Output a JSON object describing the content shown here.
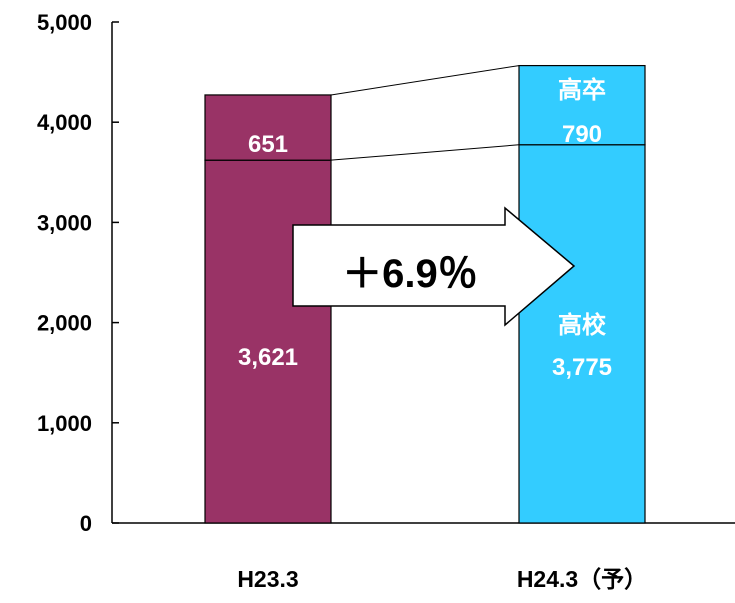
{
  "chart_data": {
    "type": "bar",
    "stacked": true,
    "categories": [
      "H23.3",
      "H24.3（予）"
    ],
    "series": [
      {
        "name": "高校",
        "values": [
          3621,
          3775
        ],
        "labels": [
          "3,621",
          "3,775"
        ]
      },
      {
        "name": "高卒",
        "values": [
          651,
          790
        ],
        "labels": [
          "651",
          "790"
        ]
      }
    ],
    "series_labels_shown": {
      "高校": "高校",
      "高卒": "高卒"
    },
    "ylim": [
      0,
      5000
    ],
    "yticks": [
      0,
      1000,
      2000,
      3000,
      4000,
      5000
    ],
    "ytick_labels": [
      "0",
      "1,000",
      "2,000",
      "3,000",
      "4,000",
      "5,000"
    ],
    "title": "",
    "xlabel": "",
    "ylabel": "",
    "grid": false,
    "annotation": {
      "text": "＋6.9％",
      "shape": "right-arrow"
    },
    "colors": {
      "cat0": "#993366",
      "cat1": "#33CCFF",
      "bar_text": "#ffffff",
      "outline": "#000000"
    }
  }
}
